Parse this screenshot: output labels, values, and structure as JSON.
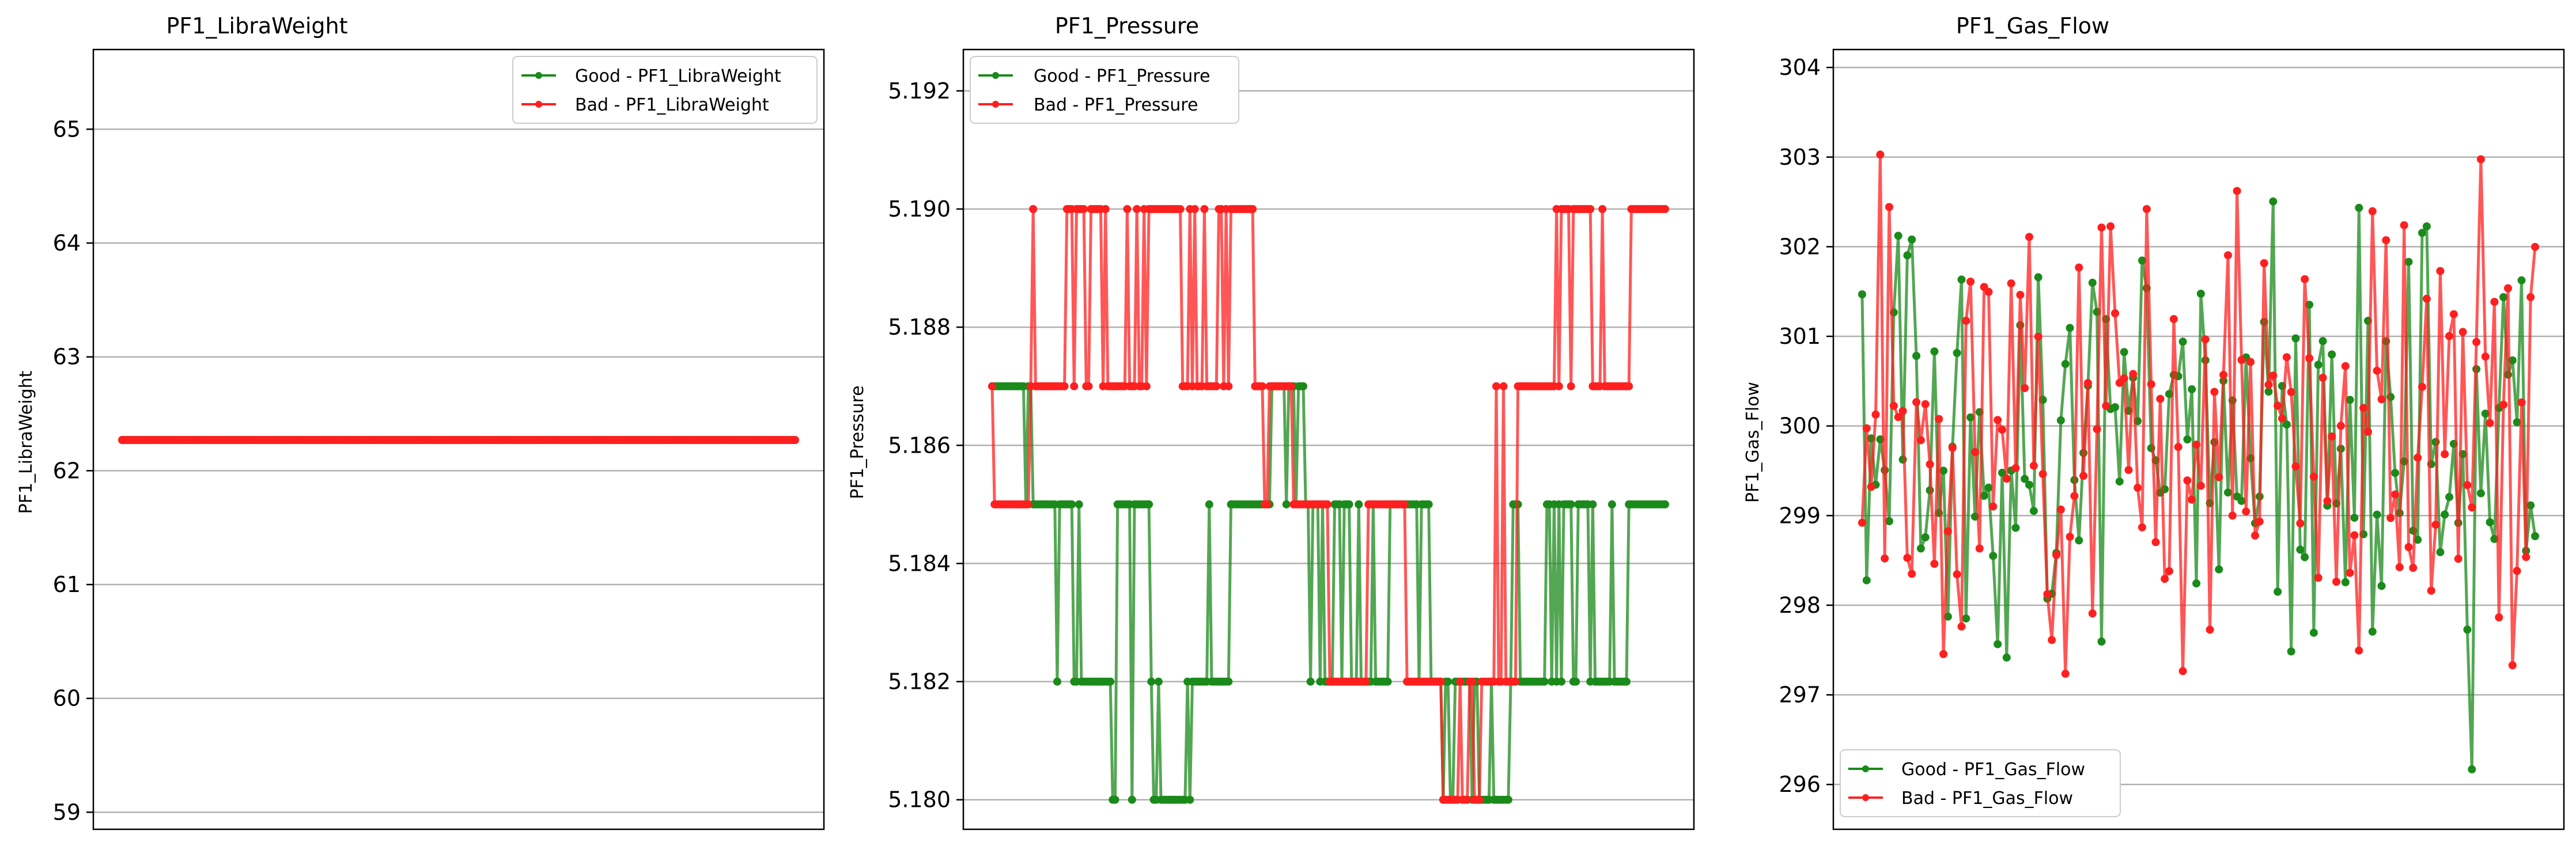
{
  "colors": {
    "good": "#1a8a1a",
    "bad": "#ff1f1f",
    "grid": "#b0b0b0",
    "axis": "#000000"
  },
  "chart_data": [
    {
      "type": "line",
      "title": "PF1_LibraWeight",
      "ylabel": "PF1_LibraWeight",
      "xlabel": "",
      "ylim": [
        58.85,
        65.7
      ],
      "yticks": [
        59,
        60,
        61,
        62,
        63,
        64,
        65
      ],
      "ytick_labels": [
        "59",
        "60",
        "61",
        "62",
        "63",
        "64",
        "65"
      ],
      "grid": "horizontal",
      "legend": "top-right",
      "legend_labels": [
        "Good - PF1_LibraWeight",
        "Bad - PF1_LibraWeight"
      ],
      "series": [
        {
          "name": "Good - PF1_LibraWeight",
          "color": "good",
          "n": 280,
          "pattern": "constant",
          "value": 62.27,
          "seed": 1
        },
        {
          "name": "Bad - PF1_LibraWeight",
          "color": "bad",
          "n": 280,
          "pattern": "constant",
          "value": 62.27,
          "seed": 2
        }
      ]
    },
    {
      "type": "line",
      "title": "PF1_Pressure",
      "ylabel": "PF1_Pressure",
      "xlabel": "",
      "ylim": [
        5.1795,
        5.1927
      ],
      "yticks": [
        5.18,
        5.182,
        5.184,
        5.186,
        5.188,
        5.19,
        5.192
      ],
      "ytick_labels": [
        "5.180",
        "5.182",
        "5.184",
        "5.186",
        "5.188",
        "5.190",
        "5.192"
      ],
      "grid": "horizontal",
      "legend": "top-left",
      "legend_labels": [
        "Good - PF1_Pressure",
        "Bad - PF1_Pressure"
      ],
      "series": [
        {
          "name": "Good - PF1_Pressure",
          "color": "good",
          "n": 280,
          "pattern": "levels",
          "levels": [
            5.187,
            5.185,
            5.182,
            5.185,
            5.18,
            5.182,
            5.185,
            5.187,
            5.185,
            5.182,
            5.185,
            5.182,
            5.18,
            5.182,
            5.185,
            5.182,
            5.185
          ],
          "seed": 3
        },
        {
          "name": "Bad - PF1_Pressure",
          "color": "bad",
          "n": 280,
          "pattern": "levels",
          "levels": [
            5.185,
            5.187,
            5.19,
            5.187,
            5.19,
            5.187,
            5.19,
            5.187,
            5.185,
            5.182,
            5.185,
            5.182,
            5.18,
            5.182,
            5.187,
            5.19,
            5.187,
            5.19
          ],
          "seed": 4
        }
      ]
    },
    {
      "type": "line",
      "title": "PF1_Gas_Flow",
      "ylabel": "PF1_Gas_Flow",
      "xlabel": "",
      "ylim": [
        295.5,
        304.2
      ],
      "yticks": [
        296,
        297,
        298,
        299,
        300,
        301,
        302,
        303,
        304
      ],
      "ytick_labels": [
        "296",
        "297",
        "298",
        "299",
        "300",
        "301",
        "302",
        "303",
        "304"
      ],
      "grid": "horizontal",
      "legend": "bottom-left",
      "legend_labels": [
        "Good - PF1_Gas_Flow",
        "Bad - PF1_Gas_Flow"
      ],
      "series": [
        {
          "name": "Good - PF1_Gas_Flow",
          "color": "good",
          "n": 150,
          "pattern": "noise",
          "min": 295.9,
          "max": 303.4,
          "seed": 5
        },
        {
          "name": "Bad - PF1_Gas_Flow",
          "color": "bad",
          "n": 150,
          "pattern": "noise",
          "min": 296.2,
          "max": 303.8,
          "seed": 6
        }
      ]
    }
  ]
}
